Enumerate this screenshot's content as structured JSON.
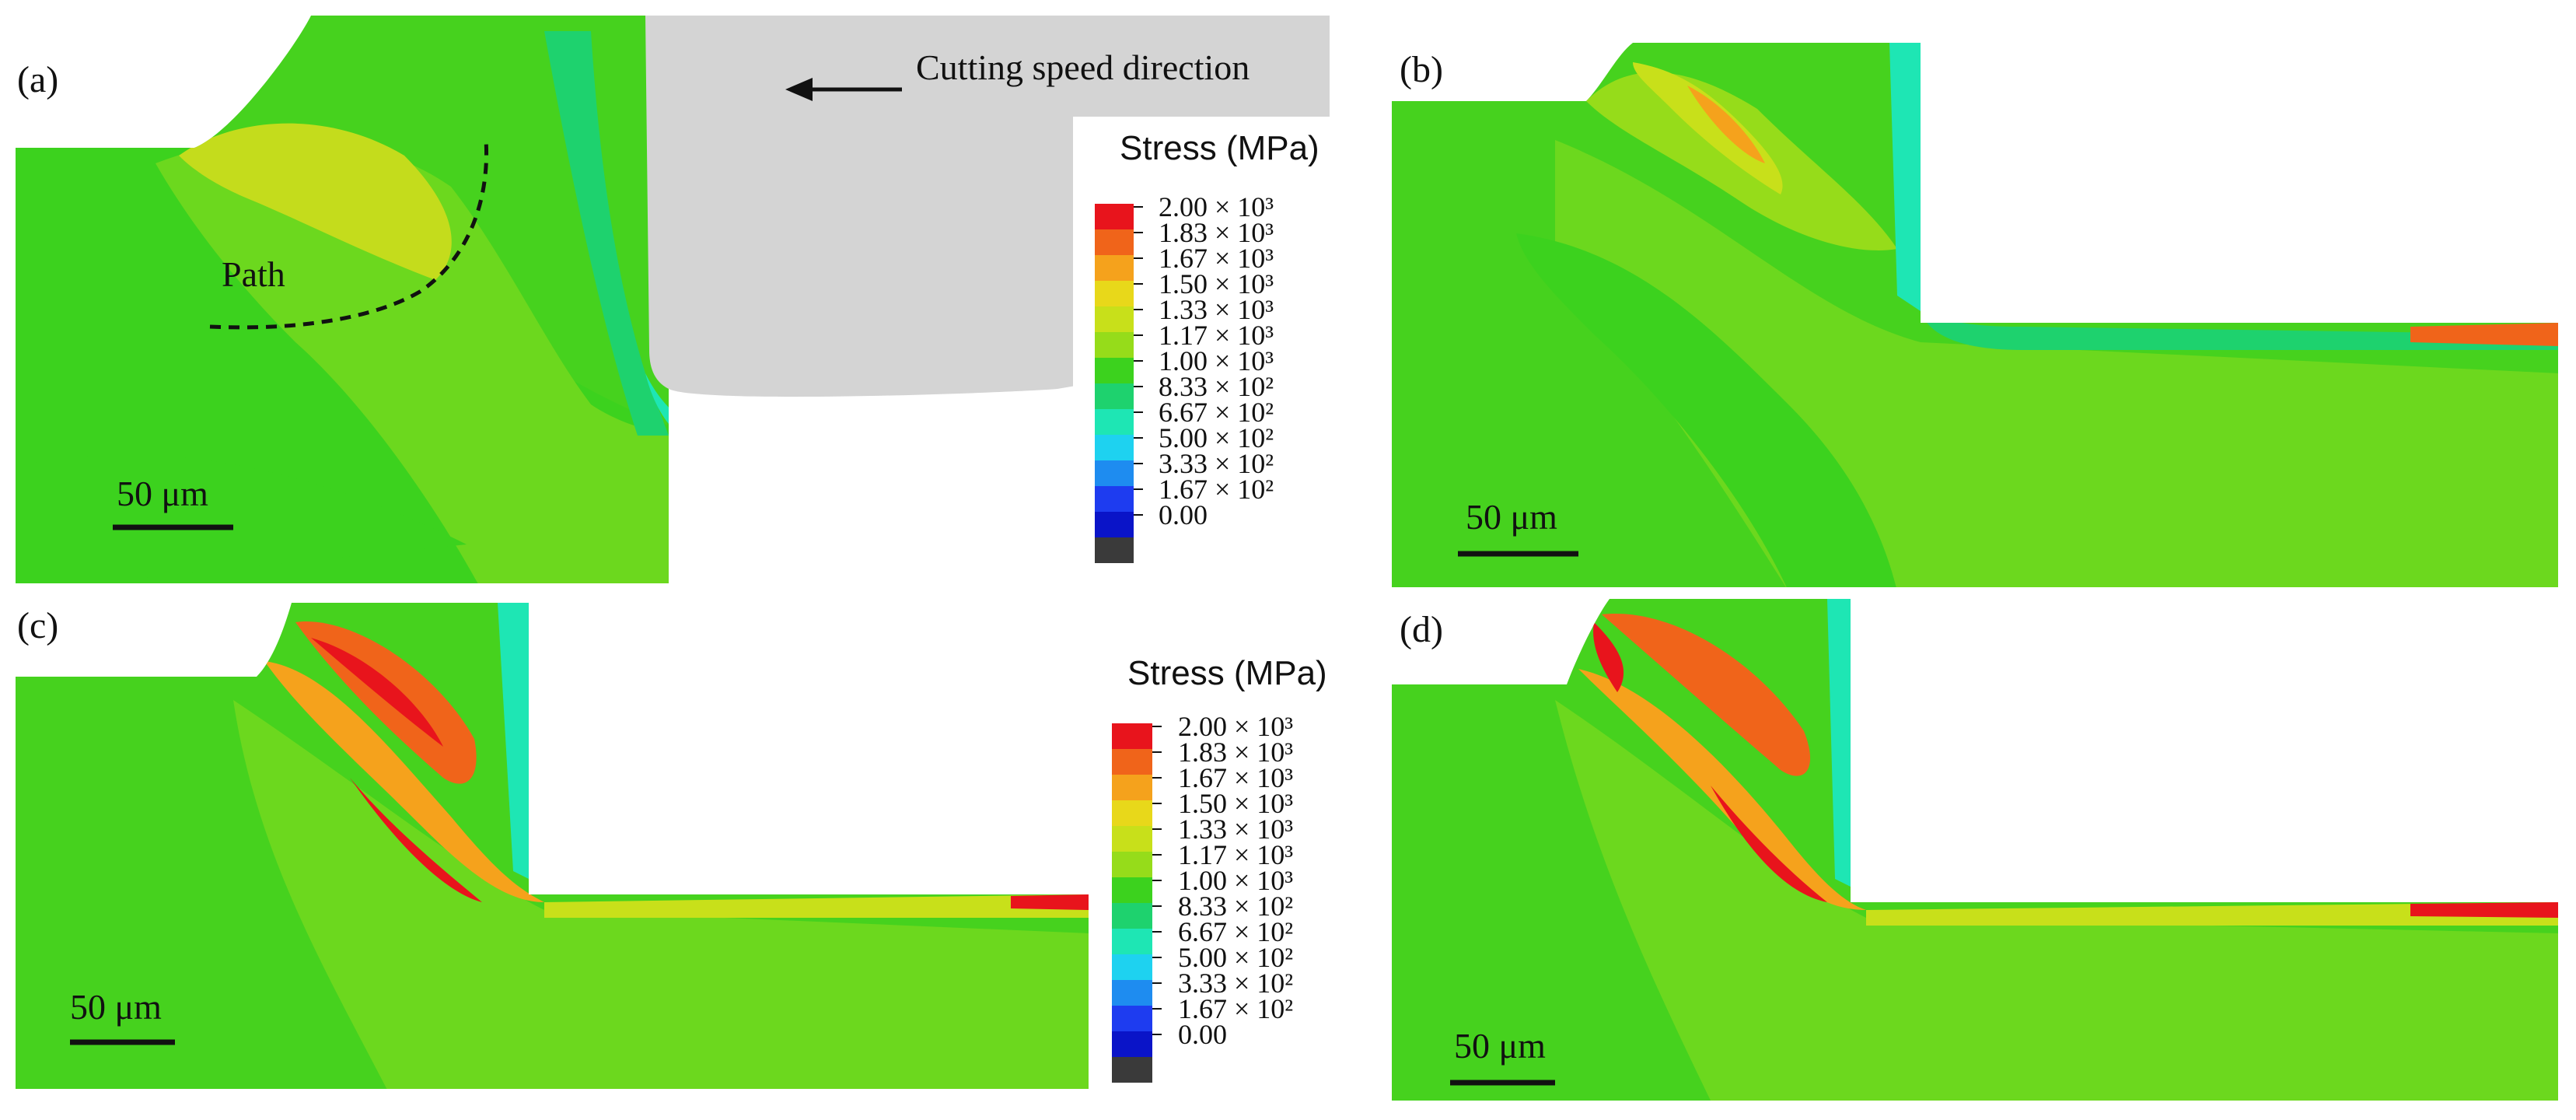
{
  "figure": {
    "panels": [
      {
        "id": "a",
        "label": "(a)"
      },
      {
        "id": "b",
        "label": "(b)"
      },
      {
        "id": "c",
        "label": "(c)"
      },
      {
        "id": "d",
        "label": "(d)"
      }
    ],
    "cutting_direction_label": "Cutting speed direction",
    "path_label": "Path",
    "scale_bar_label": "50 μm",
    "legend": {
      "title": "Stress (MPa)",
      "ticks": [
        "2.00 × 10³",
        "1.83 × 10³",
        "1.67 × 10³",
        "1.50 × 10³",
        "1.33 × 10³",
        "1.17 × 10³",
        "1.00 × 10³",
        "8.33 × 10²",
        "6.67 × 10²",
        "5.00 × 10²",
        "3.33 × 10²",
        "1.67 × 10²",
        "0.00"
      ],
      "colors": [
        "#e8141c",
        "#f0641a",
        "#f5a21c",
        "#e8d81a",
        "#c8e01a",
        "#96dc1a",
        "#3cd21e",
        "#1ed26e",
        "#1ee6b4",
        "#1ed2f0",
        "#1e8cf0",
        "#1e3cf0",
        "#0a14c8",
        "#3a3a3a"
      ]
    }
  }
}
